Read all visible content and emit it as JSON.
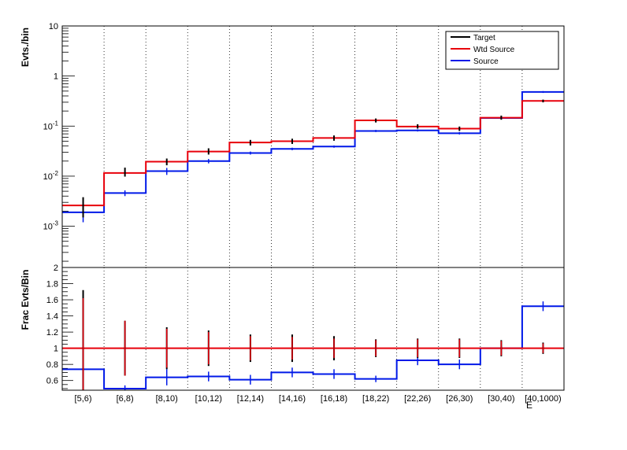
{
  "chart_data": [
    {
      "type": "line",
      "panel": "top",
      "ylabel": "Evts./bin",
      "yscale": "log",
      "ylim": [
        0.00015,
        10
      ],
      "yticks": [
        {
          "value": 0.001,
          "base": "10",
          "exp": "-3"
        },
        {
          "value": 0.01,
          "base": "10",
          "exp": "-2"
        },
        {
          "value": 0.1,
          "base": "10",
          "exp": "-1"
        },
        {
          "value": 1,
          "base": "1",
          "exp": ""
        },
        {
          "value": 10,
          "base": "10",
          "exp": ""
        }
      ],
      "grid": "vertical",
      "legend": {
        "position": "top-right",
        "entries": [
          "Target",
          "Wtd Source",
          "Source"
        ]
      },
      "categories": [
        "[5,6)",
        "[6,8)",
        "[8,10)",
        "[10,12)",
        "[12,14)",
        "[14,16)",
        "[16,18)",
        "[18,22)",
        "[22,26)",
        "[26,30)",
        "[30,40)",
        "[40,1000)"
      ],
      "series": [
        {
          "name": "Target",
          "color": "#000000",
          "values": [
            0.0026,
            0.0118,
            0.0195,
            0.031,
            0.047,
            0.05,
            0.058,
            0.13,
            0.099,
            0.089,
            0.148,
            0.318
          ],
          "err_low": [
            0.0011,
            0.002,
            0.003,
            0.004,
            0.006,
            0.006,
            0.007,
            0.012,
            0.01,
            0.009,
            0.014,
            0.02
          ],
          "err_high": [
            0.0012,
            0.003,
            0.003,
            0.005,
            0.006,
            0.006,
            0.007,
            0.012,
            0.01,
            0.009,
            0.014,
            0.02
          ]
        },
        {
          "name": "Wtd Source",
          "color": "#e8000b",
          "values": [
            0.0026,
            0.0116,
            0.0195,
            0.031,
            0.047,
            0.05,
            0.058,
            0.13,
            0.098,
            0.089,
            0.147,
            0.318
          ]
        },
        {
          "name": "Source",
          "color": "#0019e8",
          "values": [
            0.0019,
            0.0046,
            0.0126,
            0.02,
            0.029,
            0.035,
            0.039,
            0.08,
            0.082,
            0.072,
            0.145,
            0.48
          ],
          "err_low": [
            0.0007,
            0.0006,
            0.002,
            0.002,
            0.002,
            0.002,
            0.002,
            0.004,
            0.004,
            0.004,
            0.006,
            0.02
          ],
          "err_high": [
            0.0007,
            0.0006,
            0.002,
            0.002,
            0.002,
            0.002,
            0.002,
            0.004,
            0.004,
            0.004,
            0.006,
            0.02
          ]
        }
      ]
    },
    {
      "type": "line",
      "panel": "ratio",
      "ylabel": "Frac Evts/Bin",
      "xlabel": "E",
      "ylim": [
        0.48,
        2.0
      ],
      "yticks": [
        "0.6",
        "0.8",
        "1",
        "1.2",
        "1.4",
        "1.6",
        "1.8",
        "2"
      ],
      "categories": [
        "[5,6)",
        "[6,8)",
        "[8,10)",
        "[10,12)",
        "[12,14)",
        "[14,16)",
        "[16,18)",
        "[18,22)",
        "[22,26)",
        "[26,30)",
        "[30,40)",
        "[40,1000)"
      ],
      "series": [
        {
          "name": "Target",
          "color": "#000000",
          "values": [
            1,
            1,
            1,
            1,
            1,
            1,
            1,
            1,
            1,
            1,
            1,
            1
          ],
          "err": [
            0.72,
            0.34,
            0.26,
            0.22,
            0.17,
            0.17,
            0.15,
            0.11,
            0.12,
            0.12,
            0.1,
            0.07
          ]
        },
        {
          "name": "Wtd Source",
          "color": "#e8000b",
          "values": [
            1,
            1,
            1,
            1,
            1,
            1,
            1,
            1,
            1,
            1,
            1,
            1
          ],
          "err": [
            0.62,
            0.34,
            0.24,
            0.2,
            0.15,
            0.14,
            0.12,
            0.1,
            0.11,
            0.11,
            0.09,
            0.06
          ]
        },
        {
          "name": "Source",
          "color": "#0019e8",
          "values": [
            0.74,
            0.5,
            0.64,
            0.65,
            0.61,
            0.7,
            0.68,
            0.62,
            0.85,
            0.8,
            1.0,
            1.52
          ],
          "err": [
            0.27,
            0.04,
            0.1,
            0.06,
            0.06,
            0.06,
            0.06,
            0.04,
            0.06,
            0.06,
            0.06,
            0.06
          ]
        }
      ]
    }
  ]
}
